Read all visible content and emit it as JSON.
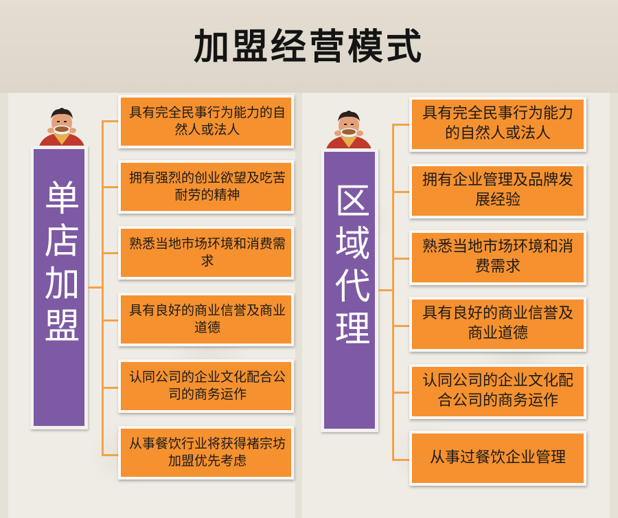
{
  "title": "加盟经营模式",
  "left": {
    "label": "单店加盟",
    "items": [
      "具有完全民事行为能力的自然人或法人",
      "拥有强烈的创业欲望及吃苦耐劳的精神",
      "熟悉当地市场环境和消费需求",
      "具有良好的商业信誉及商业道德",
      "认同公司的企业文化配合公司的商务运作",
      "从事餐饮行业将获得褚宗坊加盟优先考虑"
    ]
  },
  "right": {
    "label": "区域代理",
    "items": [
      "具有完全民事行为能力的自然人或法人",
      "拥有企业管理及品牌发展经验",
      "熟悉当地市场环境和消费需求",
      "具有良好的商业信誉及商业道德",
      "认同公司的企业文化配合公司的商务运作",
      "从事过餐饮企业管理"
    ]
  },
  "colors": {
    "item_fill": "#f6912f",
    "label_fill": "#7d5aa3",
    "connector": "#f2a24a"
  },
  "icons": [
    "mascot-icon"
  ]
}
